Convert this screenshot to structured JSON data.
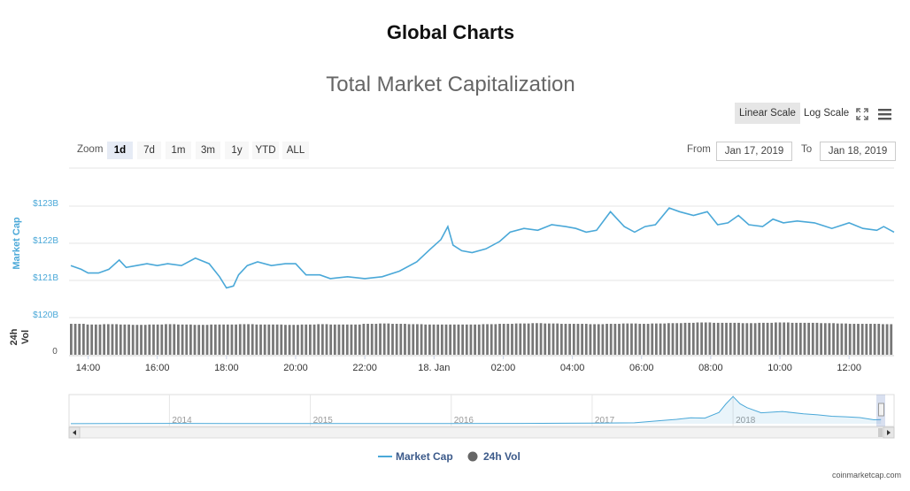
{
  "page_title": "Global Charts",
  "chart_title": "Total Market Capitalization",
  "toolbar": {
    "linear_scale": "Linear Scale",
    "log_scale": "Log Scale",
    "fullscreen_icon": "fullscreen-icon",
    "menu_icon": "hamburger-menu-icon"
  },
  "zoom": {
    "label": "Zoom",
    "buttons": [
      "1d",
      "7d",
      "1m",
      "3m",
      "1y",
      "YTD",
      "ALL"
    ],
    "active": "1d"
  },
  "range": {
    "from_label": "From",
    "from_value": "Jan 17, 2019",
    "to_label": "To",
    "to_value": "Jan 18, 2019"
  },
  "colors": {
    "market_cap": "#4aa8d8",
    "volume": "#777777",
    "axis_text": "#4aa8d8",
    "grid": "#e6e6e6"
  },
  "watermark": "coinmarketcap.com",
  "chart_data": {
    "type": "line",
    "x_ticks": [
      "14:00",
      "16:00",
      "18:00",
      "20:00",
      "22:00",
      "18. Jan",
      "02:00",
      "04:00",
      "06:00",
      "08:00",
      "10:00",
      "12:00"
    ],
    "x_tick_hours": [
      14,
      16,
      18,
      20,
      22,
      24,
      26,
      28,
      30,
      32,
      34,
      36
    ],
    "x_range_hours": [
      13.5,
      37.3
    ],
    "y_axis": {
      "title": "Market Cap",
      "ticks": [
        "$123B",
        "$122B",
        "$121B",
        "$120B"
      ],
      "tick_values": [
        123,
        122,
        121,
        120
      ],
      "unit": "billion USD",
      "ylim": [
        120,
        124.1
      ]
    },
    "vol_axis": {
      "title": "24h Vol",
      "ticks": [
        "0"
      ]
    },
    "series": [
      {
        "name": "Market Cap",
        "x": [
          13.5,
          13.8,
          14.0,
          14.3,
          14.6,
          14.9,
          15.1,
          15.4,
          15.7,
          16.0,
          16.3,
          16.7,
          17.1,
          17.5,
          17.8,
          18.0,
          18.2,
          18.35,
          18.6,
          18.9,
          19.3,
          19.7,
          20.0,
          20.3,
          20.7,
          21.0,
          21.5,
          22.0,
          22.5,
          23.0,
          23.5,
          23.9,
          24.2,
          24.4,
          24.55,
          24.8,
          25.1,
          25.5,
          25.9,
          26.2,
          26.6,
          27.0,
          27.4,
          27.8,
          28.1,
          28.4,
          28.7,
          29.1,
          29.5,
          29.8,
          30.1,
          30.4,
          30.8,
          31.1,
          31.5,
          31.9,
          32.2,
          32.5,
          32.8,
          33.1,
          33.5,
          33.8,
          34.1,
          34.5,
          35.0,
          35.5,
          36.0,
          36.4,
          36.8,
          37.0,
          37.3
        ],
        "values": [
          121.4,
          121.3,
          121.2,
          121.2,
          121.3,
          121.55,
          121.35,
          121.4,
          121.45,
          121.4,
          121.45,
          121.4,
          121.6,
          121.45,
          121.1,
          120.8,
          120.85,
          121.15,
          121.4,
          121.5,
          121.4,
          121.45,
          121.45,
          121.15,
          121.15,
          121.05,
          121.1,
          121.05,
          121.1,
          121.25,
          121.5,
          121.85,
          122.1,
          122.45,
          121.95,
          121.8,
          121.75,
          121.85,
          122.05,
          122.3,
          122.4,
          122.35,
          122.5,
          122.45,
          122.4,
          122.3,
          122.35,
          122.85,
          122.45,
          122.3,
          122.45,
          122.5,
          122.95,
          122.85,
          122.75,
          122.85,
          122.5,
          122.55,
          122.75,
          122.5,
          122.45,
          122.65,
          122.55,
          122.6,
          122.55,
          122.4,
          122.55,
          122.4,
          122.35,
          122.45,
          122.3
        ]
      },
      {
        "name": "24h Vol",
        "type": "column",
        "relative_values": [
          0.92,
          0.9,
          0.91,
          0.9,
          0.89,
          0.9,
          0.91,
          0.9,
          0.89,
          0.9,
          0.9,
          0.91,
          0.9,
          0.9,
          0.89,
          0.9,
          0.91,
          0.9,
          0.9,
          0.92,
          0.93,
          0.92,
          0.91,
          0.9,
          0.9,
          0.9,
          0.9,
          0.91,
          0.92,
          0.93,
          0.94,
          0.93,
          0.92,
          0.92,
          0.91,
          0.92,
          0.93,
          0.92,
          0.93,
          0.94,
          0.95,
          0.96,
          0.95,
          0.95,
          0.94,
          0.95,
          0.96,
          0.95,
          0.95,
          0.94,
          0.93,
          0.92,
          0.92,
          0.91
        ]
      }
    ],
    "navigator": {
      "x_labels": [
        "2014",
        "2015",
        "2016",
        "2017",
        "2018"
      ],
      "x_label_years": [
        2014,
        2015,
        2016,
        2017,
        2018
      ],
      "x_range_years": [
        2013.3,
        2019.08
      ],
      "history_years": [
        2013.3,
        2014.0,
        2014.5,
        2015.0,
        2015.5,
        2016.0,
        2016.5,
        2017.0,
        2017.3,
        2017.5,
        2017.6,
        2017.7,
        2017.8,
        2017.9,
        2017.95,
        2018.0,
        2018.05,
        2018.1,
        2018.2,
        2018.35,
        2018.5,
        2018.6,
        2018.7,
        2018.8,
        2018.9,
        2019.0,
        2019.05
      ],
      "history_values": [
        1.5,
        10,
        6,
        4,
        5,
        7,
        11,
        18,
        28,
        95,
        130,
        175,
        165,
        330,
        580,
        795,
        580,
        470,
        320,
        360,
        290,
        260,
        220,
        205,
        180,
        115,
        122
      ]
    },
    "legend_position": "bottom-center",
    "grid": true
  }
}
